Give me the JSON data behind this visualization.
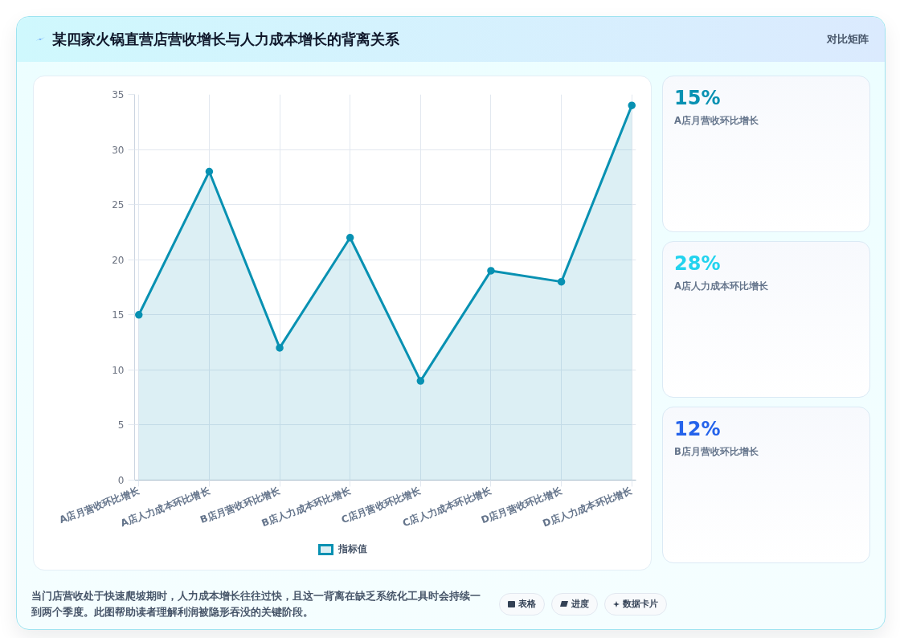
{
  "chart_data": [
    {
      "type": "area",
      "title": "某四家火锅直营店营收增长与人力成本增长的背离关系",
      "categories": [
        "A店月营收环比增长",
        "A店人力成本环比增长",
        "B店月营收环比增长",
        "B店人力成本环比增长",
        "C店月营收环比增长",
        "C店人力成本环比增长",
        "D店月营收环比增长",
        "D店人力成本环比增长"
      ],
      "series": [
        {
          "name": "指标值",
          "color": "#0891b2",
          "values": [
            15,
            28,
            12,
            22,
            9,
            19,
            18,
            34
          ]
        }
      ],
      "ylim": [
        0,
        35
      ],
      "yticks": [
        0,
        5,
        10,
        15,
        20,
        25,
        30,
        35
      ],
      "grid": true,
      "legend": "bottom",
      "marker": "circle",
      "line_style": "solid",
      "annotations": [
        "当门店营收处于快速爬坡期时，人力成本增长往往过快，且这一背离在缺乏系统化工具时会持续一到两个季度。此图帮助读者理解利润被隐形吞没的关键阶段。",
        "表格",
        "进度",
        "数据卡片"
      ]
    },
    {
      "type": "other",
      "title": "对比矩阵",
      "categories": [
        "A店月营收环比增长",
        "A店人力成本环比增长",
        "B店月营收环比增长"
      ],
      "value_labels": [
        "15%",
        "28%",
        "12%"
      ]
    }
  ]
}
